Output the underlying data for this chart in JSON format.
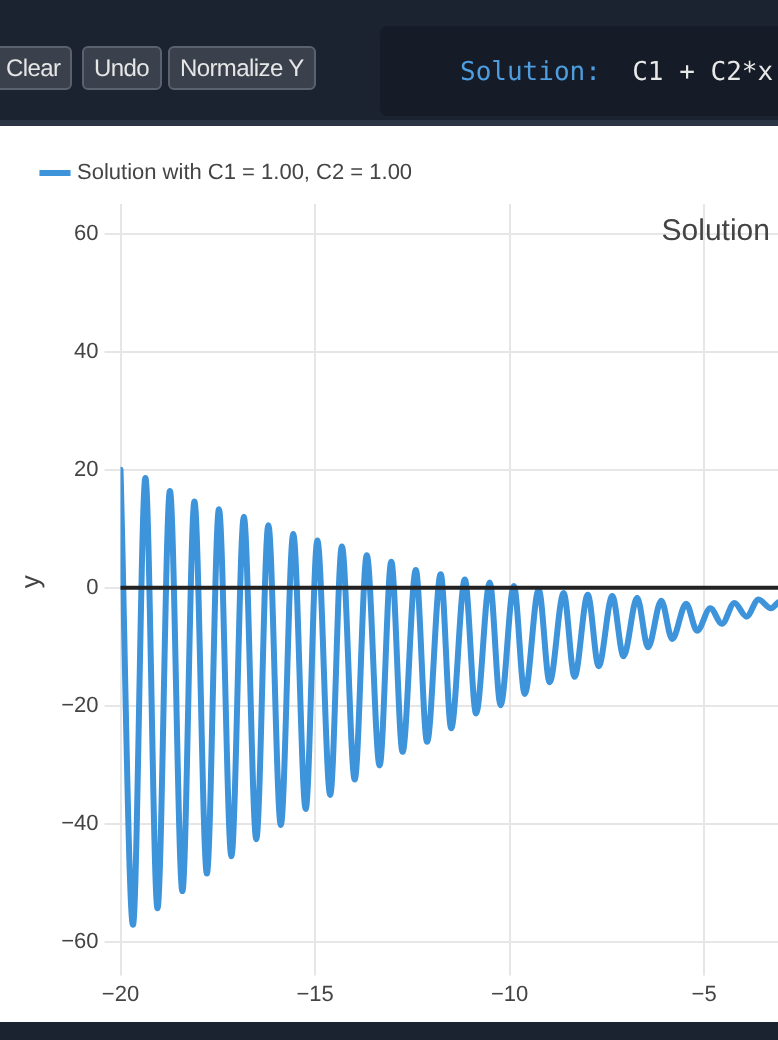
{
  "chart_data": {
    "type": "line",
    "annotations": [
      "Clear",
      "Undo",
      "Normalize Y",
      "Solution:  C1 + C2*x",
      "Solution"
    ],
    "ylabel": "y",
    "legend": "top left",
    "grid": true,
    "marker": "none",
    "line_style": "solid",
    "xlim": [
      -20,
      -3.1
    ],
    "xticks": [
      {
        "value": -20,
        "label": "−20"
      },
      {
        "value": -15,
        "label": "−15"
      },
      {
        "value": -10,
        "label": "−10"
      },
      {
        "value": -5,
        "label": "−5"
      }
    ],
    "ylim": [
      -63,
      65
    ],
    "yticks": [
      {
        "value": -60,
        "label": "−60"
      },
      {
        "value": -40,
        "label": "−40"
      },
      {
        "value": -20,
        "label": "−20"
      },
      0,
      20,
      40,
      60
    ],
    "ref_lines": [
      {
        "axis": "y",
        "value": 0,
        "color": "#222222"
      }
    ],
    "series": [
      {
        "name": "Solution with C1 = 1.00, C2 = 1.00",
        "color": "#3d94db",
        "x": [
          -20,
          -19.68,
          -19.36,
          -19.05,
          -18.73,
          -18.41,
          -18.1,
          -17.78,
          -17.47,
          -17.15,
          -16.83,
          -16.51,
          -16.2,
          -15.88,
          -15.56,
          -15.24,
          -14.94,
          -14.61,
          -14.31,
          -13.98,
          -13.67,
          -13.34,
          -13.04,
          -12.75,
          -12.41,
          -12.12,
          -11.77,
          -11.5,
          -11.15,
          -10.86,
          -10.51,
          -10.23,
          -9.89,
          -9.61,
          -9.25,
          -8.97,
          -8.61,
          -8.33,
          -7.99,
          -7.71,
          -7.36,
          -7.07,
          -6.72,
          -6.44,
          -6.1,
          -5.82,
          -5.46,
          -5.18,
          -4.84,
          -4.54,
          -4.22,
          -3.91,
          -3.6,
          -3.28,
          -3.1
        ],
        "values": [
          20,
          -57.1,
          18.6,
          -54.3,
          16.4,
          -51.4,
          14.6,
          -48.4,
          13.3,
          -45.5,
          12,
          -42.6,
          10.6,
          -40.2,
          9.1,
          -37.5,
          8,
          -35.1,
          7,
          -32.5,
          5.5,
          -30.1,
          4.4,
          -27.8,
          3,
          -26.1,
          2.3,
          -23.8,
          1.4,
          -21.3,
          0.9,
          -19.9,
          0.3,
          -18,
          -0.3,
          -16,
          -0.9,
          -15.1,
          -1.2,
          -13.3,
          -1.4,
          -11.6,
          -1.7,
          -10.1,
          -2.2,
          -8.7,
          -2.7,
          -7.3,
          -3.5,
          -6.1,
          -2.6,
          -4.9,
          -2,
          -3.5,
          -2.5
        ]
      }
    ]
  }
}
